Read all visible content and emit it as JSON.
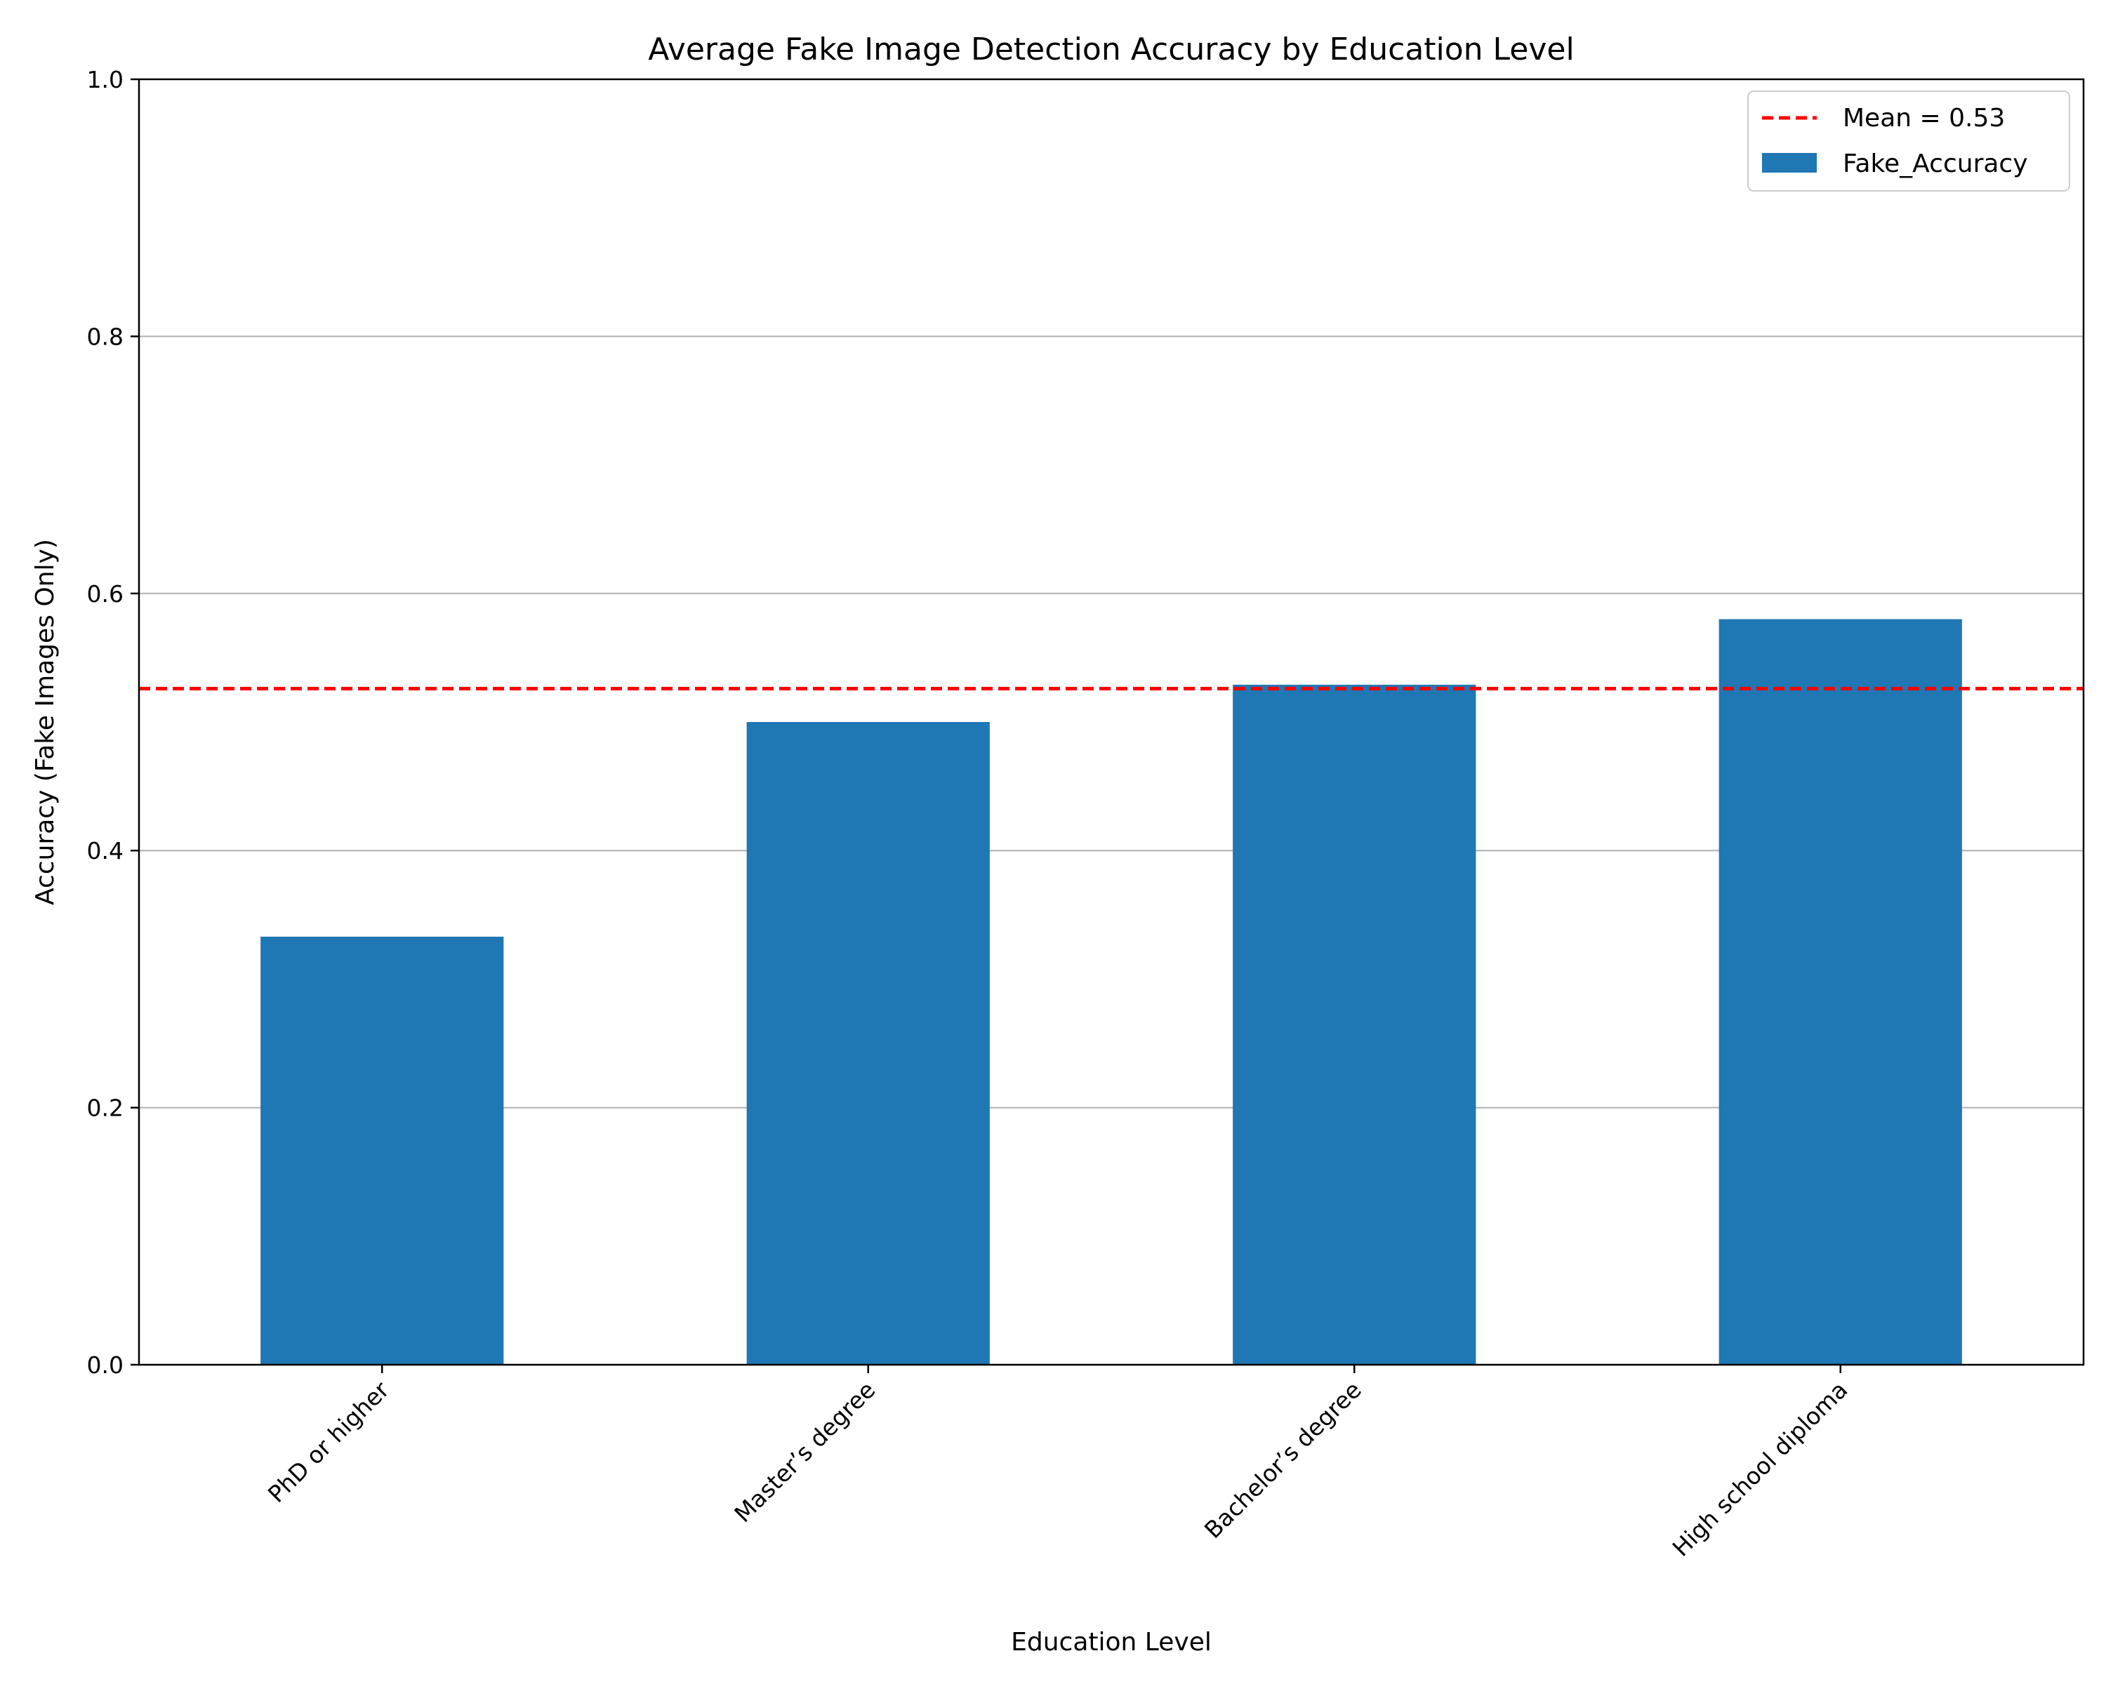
{
  "chart_data": {
    "type": "bar",
    "title": "Average Fake Image Detection Accuracy by Education Level",
    "xlabel": "Education Level",
    "ylabel": "Accuracy (Fake Images Only)",
    "categories": [
      "PhD or higher",
      "Master’s degree",
      "Bachelor’s degree",
      "High school diploma"
    ],
    "series": [
      {
        "name": "Fake_Accuracy",
        "values": [
          0.333,
          0.5,
          0.529,
          0.58
        ],
        "color": "#1f77b4"
      }
    ],
    "ylim": [
      0,
      1
    ],
    "yticks": [
      0.0,
      0.2,
      0.4,
      0.6,
      0.8,
      1.0
    ],
    "ytick_labels": [
      "0.0",
      "0.2",
      "0.4",
      "0.6",
      "0.8",
      "1.0"
    ],
    "reference_line": {
      "label": "Mean = 0.53",
      "value": 0.526,
      "color": "#ff0000",
      "style": "dashed"
    },
    "grid": {
      "axis": "y",
      "enabled": true
    },
    "legend": {
      "placement": "top-right"
    }
  }
}
